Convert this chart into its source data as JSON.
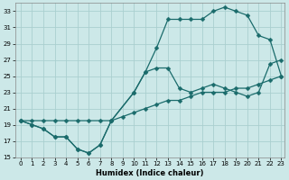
{
  "xlabel": "Humidex (Indice chaleur)",
  "xlim": [
    -0.5,
    23.3
  ],
  "ylim": [
    15,
    34
  ],
  "xticks": [
    0,
    1,
    2,
    3,
    4,
    5,
    6,
    7,
    8,
    9,
    10,
    11,
    12,
    13,
    14,
    15,
    16,
    17,
    18,
    19,
    20,
    21,
    22,
    23
  ],
  "yticks": [
    15,
    17,
    19,
    21,
    23,
    25,
    27,
    29,
    31,
    33
  ],
  "bg_color": "#cce8e8",
  "grid_color": "#aacfcf",
  "line_color": "#1a6b6b",
  "line1_x": [
    0,
    1,
    2,
    3,
    4,
    5,
    6,
    7,
    8,
    9,
    10,
    11,
    12,
    13,
    14,
    15,
    16,
    17,
    18,
    19,
    20,
    21,
    22,
    23
  ],
  "line1_y": [
    19.5,
    19.5,
    19.5,
    19.5,
    19.5,
    19.5,
    19.5,
    19.5,
    19.5,
    20.0,
    20.5,
    21.0,
    21.5,
    22.0,
    22.0,
    22.5,
    23.0,
    23.0,
    23.0,
    23.5,
    23.5,
    24.0,
    24.5,
    25.0
  ],
  "line2_x": [
    0,
    1,
    2,
    3,
    4,
    5,
    6,
    7,
    8,
    10,
    11,
    12,
    13,
    14,
    15,
    16,
    17,
    18,
    19,
    20,
    21,
    22,
    23
  ],
  "line2_y": [
    19.5,
    19.0,
    18.5,
    17.5,
    17.5,
    16.0,
    15.5,
    16.5,
    19.5,
    23.0,
    25.5,
    28.5,
    32.0,
    32.0,
    32.0,
    32.0,
    33.0,
    33.5,
    33.0,
    32.5,
    30.0,
    29.5,
    25.0
  ],
  "line3_x": [
    0,
    1,
    2,
    3,
    4,
    5,
    6,
    7,
    8,
    10,
    11,
    12,
    13,
    14,
    15,
    16,
    17,
    18,
    19,
    20,
    21,
    22,
    23
  ],
  "line3_y": [
    19.5,
    19.0,
    18.5,
    17.5,
    17.5,
    16.0,
    15.5,
    16.5,
    19.5,
    23.0,
    25.5,
    26.0,
    26.0,
    23.5,
    23.0,
    23.5,
    24.0,
    23.5,
    23.0,
    22.5,
    23.0,
    26.5,
    27.0
  ]
}
